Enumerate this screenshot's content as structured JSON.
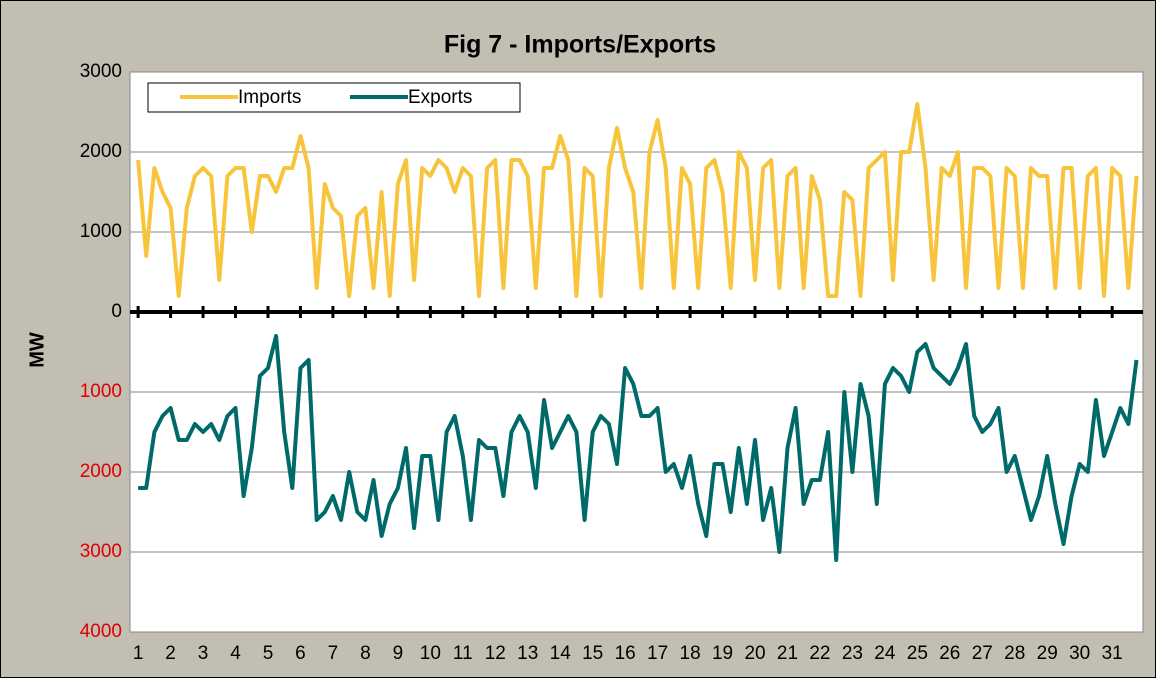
{
  "chart_data": {
    "type": "line",
    "title": "Fig 7 - Imports/Exports",
    "y_label": "MW",
    "x": [
      1,
      1.25,
      1.5,
      1.75,
      2,
      2.25,
      2.5,
      2.75,
      3,
      3.25,
      3.5,
      3.75,
      4,
      4.25,
      4.5,
      4.75,
      5,
      5.25,
      5.5,
      5.75,
      6,
      6.25,
      6.5,
      6.75,
      7,
      7.25,
      7.5,
      7.75,
      8,
      8.25,
      8.5,
      8.75,
      9,
      9.25,
      9.5,
      9.75,
      10,
      10.25,
      10.5,
      10.75,
      11,
      11.25,
      11.5,
      11.75,
      12,
      12.25,
      12.5,
      12.75,
      13,
      13.25,
      13.5,
      13.75,
      14,
      14.25,
      14.5,
      14.75,
      15,
      15.25,
      15.5,
      15.75,
      16,
      16.25,
      16.5,
      16.75,
      17,
      17.25,
      17.5,
      17.75,
      18,
      18.25,
      18.5,
      18.75,
      19,
      19.25,
      19.5,
      19.75,
      20,
      20.25,
      20.5,
      20.75,
      21,
      21.25,
      21.5,
      21.75,
      22,
      22.25,
      22.5,
      22.75,
      23,
      23.25,
      23.5,
      23.75,
      24,
      24.25,
      24.5,
      24.75,
      25,
      25.25,
      25.5,
      25.75,
      26,
      26.25,
      26.5,
      26.75,
      27,
      27.25,
      27.5,
      27.75,
      28,
      28.25,
      28.5,
      28.75,
      29,
      29.25,
      29.5,
      29.75,
      30,
      30.25,
      30.5,
      30.75,
      31,
      31.25,
      31.5,
      31.75
    ],
    "series": [
      {
        "name": "Imports",
        "color": "#f7c43c",
        "values": [
          1900,
          700,
          1800,
          1500,
          1300,
          200,
          1300,
          1700,
          1800,
          1700,
          400,
          1700,
          1800,
          1800,
          1000,
          1700,
          1700,
          1500,
          1800,
          1800,
          2200,
          1800,
          300,
          1600,
          1300,
          1200,
          200,
          1200,
          1300,
          300,
          1500,
          200,
          1600,
          1900,
          400,
          1800,
          1700,
          1900,
          1800,
          1500,
          1800,
          1700,
          200,
          1800,
          1900,
          300,
          1900,
          1900,
          1700,
          300,
          1800,
          1800,
          2200,
          1900,
          200,
          1800,
          1700,
          200,
          1800,
          2300,
          1800,
          1500,
          300,
          2000,
          2400,
          1800,
          300,
          1800,
          1600,
          300,
          1800,
          1900,
          1500,
          300,
          2000,
          1800,
          400,
          1800,
          1900,
          300,
          1700,
          1800,
          300,
          1700,
          1400,
          200,
          200,
          1500,
          1400,
          200,
          1800,
          1900,
          2000,
          400,
          2000,
          2000,
          2600,
          1800,
          400,
          1800,
          1700,
          2000,
          300,
          1800,
          1800,
          1700,
          300,
          1800,
          1700,
          300,
          1800,
          1700,
          1700,
          300,
          1800,
          1800,
          300,
          1700,
          1800,
          200,
          1800,
          1700,
          300,
          1700
        ]
      },
      {
        "name": "Exports",
        "color": "#006a6a",
        "values": [
          -2200,
          -2200,
          -1500,
          -1300,
          -1200,
          -1600,
          -1600,
          -1400,
          -1500,
          -1400,
          -1600,
          -1300,
          -1200,
          -2300,
          -1700,
          -800,
          -700,
          -300,
          -1500,
          -2200,
          -700,
          -600,
          -2600,
          -2500,
          -2300,
          -2600,
          -2000,
          -2500,
          -2600,
          -2100,
          -2800,
          -2400,
          -2200,
          -1700,
          -2700,
          -1800,
          -1800,
          -2600,
          -1500,
          -1300,
          -1800,
          -2600,
          -1600,
          -1700,
          -1700,
          -2300,
          -1500,
          -1300,
          -1500,
          -2200,
          -1100,
          -1700,
          -1500,
          -1300,
          -1500,
          -2600,
          -1500,
          -1300,
          -1400,
          -1900,
          -700,
          -900,
          -1300,
          -1300,
          -1200,
          -2000,
          -1900,
          -2200,
          -1800,
          -2400,
          -2800,
          -1900,
          -1900,
          -2500,
          -1700,
          -2400,
          -1600,
          -2600,
          -2200,
          -3000,
          -1700,
          -1200,
          -2400,
          -2100,
          -2100,
          -1500,
          -3100,
          -1000,
          -2000,
          -900,
          -1300,
          -2400,
          -900,
          -700,
          -800,
          -1000,
          -500,
          -400,
          -700,
          -800,
          -900,
          -700,
          -400,
          -1300,
          -1500,
          -1400,
          -1200,
          -2000,
          -1800,
          -2200,
          -2600,
          -2300,
          -1800,
          -2400,
          -2900,
          -2300,
          -1900,
          -2000,
          -1100,
          -1800,
          -1500,
          -1200,
          -1400,
          -600
        ]
      }
    ],
    "xlim": [
      0.75,
      31.95
    ],
    "xticks": [
      1,
      2,
      3,
      4,
      5,
      6,
      7,
      8,
      9,
      10,
      11,
      12,
      13,
      14,
      15,
      16,
      17,
      18,
      19,
      20,
      21,
      22,
      23,
      24,
      25,
      26,
      27,
      28,
      29,
      30,
      31
    ],
    "ylim": [
      -4000,
      3000
    ],
    "yticks": [
      3000,
      2000,
      1000,
      0,
      {
        "value": -1000,
        "label": "1000"
      },
      {
        "value": -2000,
        "label": "2000"
      },
      {
        "value": -3000,
        "label": "3000"
      },
      {
        "value": -4000,
        "label": "4000"
      }
    ],
    "negative_tick_label_color": "#e00000",
    "grid": true,
    "legend": "top-left"
  }
}
